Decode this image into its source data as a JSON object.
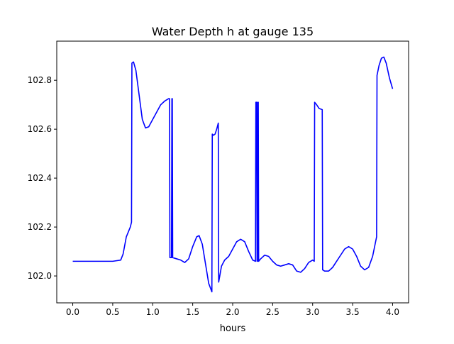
{
  "chart_data": {
    "type": "line",
    "title": "Water Depth h at gauge 135",
    "xlabel": "hours",
    "ylabel": "",
    "xlim": [
      -0.2,
      4.2
    ],
    "ylim": [
      101.89,
      102.96
    ],
    "x_ticks": [
      0.0,
      0.5,
      1.0,
      1.5,
      2.0,
      2.5,
      3.0,
      3.5,
      4.0
    ],
    "x_tick_labels": [
      "0.0",
      "0.5",
      "1.0",
      "1.5",
      "2.0",
      "2.5",
      "3.0",
      "3.5",
      "4.0"
    ],
    "y_ticks": [
      102.0,
      102.2,
      102.4,
      102.6,
      102.8
    ],
    "y_tick_labels": [
      "102.0",
      "102.2",
      "102.4",
      "102.6",
      "102.8"
    ],
    "grid": false,
    "series": [
      {
        "color": "#0000ff",
        "points": [
          [
            0.0,
            102.06
          ],
          [
            0.25,
            102.06
          ],
          [
            0.5,
            102.06
          ],
          [
            0.6,
            102.065
          ],
          [
            0.63,
            102.09
          ],
          [
            0.67,
            102.16
          ],
          [
            0.72,
            102.2
          ],
          [
            0.735,
            102.22
          ],
          [
            0.74,
            102.87
          ],
          [
            0.76,
            102.875
          ],
          [
            0.79,
            102.84
          ],
          [
            0.83,
            102.74
          ],
          [
            0.87,
            102.64
          ],
          [
            0.91,
            102.605
          ],
          [
            0.95,
            102.61
          ],
          [
            1.0,
            102.64
          ],
          [
            1.05,
            102.67
          ],
          [
            1.1,
            102.7
          ],
          [
            1.15,
            102.715
          ],
          [
            1.2,
            102.725
          ],
          [
            1.21,
            102.725
          ],
          [
            1.215,
            102.075
          ],
          [
            1.235,
            102.075
          ],
          [
            1.24,
            102.725
          ],
          [
            1.245,
            102.725
          ],
          [
            1.25,
            102.075
          ],
          [
            1.3,
            102.07
          ],
          [
            1.35,
            102.065
          ],
          [
            1.4,
            102.055
          ],
          [
            1.45,
            102.07
          ],
          [
            1.5,
            102.12
          ],
          [
            1.55,
            102.16
          ],
          [
            1.58,
            102.165
          ],
          [
            1.62,
            102.13
          ],
          [
            1.66,
            102.05
          ],
          [
            1.7,
            101.97
          ],
          [
            1.74,
            101.935
          ],
          [
            1.745,
            102.58
          ],
          [
            1.76,
            102.575
          ],
          [
            1.78,
            102.58
          ],
          [
            1.8,
            102.6
          ],
          [
            1.82,
            102.625
          ],
          [
            1.825,
            101.975
          ],
          [
            1.86,
            102.04
          ],
          [
            1.9,
            102.065
          ],
          [
            1.95,
            102.08
          ],
          [
            2.0,
            102.11
          ],
          [
            2.05,
            102.14
          ],
          [
            2.1,
            102.15
          ],
          [
            2.15,
            102.14
          ],
          [
            2.2,
            102.1
          ],
          [
            2.25,
            102.065
          ],
          [
            2.285,
            102.06
          ],
          [
            2.29,
            102.71
          ],
          [
            2.3,
            102.71
          ],
          [
            2.305,
            102.06
          ],
          [
            2.31,
            102.06
          ],
          [
            2.315,
            102.71
          ],
          [
            2.32,
            102.71
          ],
          [
            2.325,
            102.06
          ],
          [
            2.35,
            102.07
          ],
          [
            2.4,
            102.085
          ],
          [
            2.45,
            102.08
          ],
          [
            2.5,
            102.06
          ],
          [
            2.55,
            102.045
          ],
          [
            2.6,
            102.04
          ],
          [
            2.65,
            102.045
          ],
          [
            2.7,
            102.05
          ],
          [
            2.75,
            102.045
          ],
          [
            2.8,
            102.02
          ],
          [
            2.85,
            102.015
          ],
          [
            2.9,
            102.03
          ],
          [
            2.95,
            102.055
          ],
          [
            3.0,
            102.065
          ],
          [
            3.02,
            102.06
          ],
          [
            3.025,
            102.71
          ],
          [
            3.05,
            102.7
          ],
          [
            3.08,
            102.685
          ],
          [
            3.12,
            102.68
          ],
          [
            3.125,
            102.025
          ],
          [
            3.15,
            102.02
          ],
          [
            3.2,
            102.02
          ],
          [
            3.25,
            102.035
          ],
          [
            3.3,
            102.06
          ],
          [
            3.35,
            102.085
          ],
          [
            3.4,
            102.11
          ],
          [
            3.45,
            102.12
          ],
          [
            3.5,
            102.11
          ],
          [
            3.55,
            102.08
          ],
          [
            3.6,
            102.04
          ],
          [
            3.65,
            102.025
          ],
          [
            3.7,
            102.035
          ],
          [
            3.75,
            102.08
          ],
          [
            3.8,
            102.16
          ],
          [
            3.805,
            102.82
          ],
          [
            3.83,
            102.86
          ],
          [
            3.86,
            102.89
          ],
          [
            3.89,
            102.895
          ],
          [
            3.92,
            102.87
          ],
          [
            3.96,
            102.81
          ],
          [
            4.0,
            102.765
          ]
        ]
      }
    ]
  }
}
